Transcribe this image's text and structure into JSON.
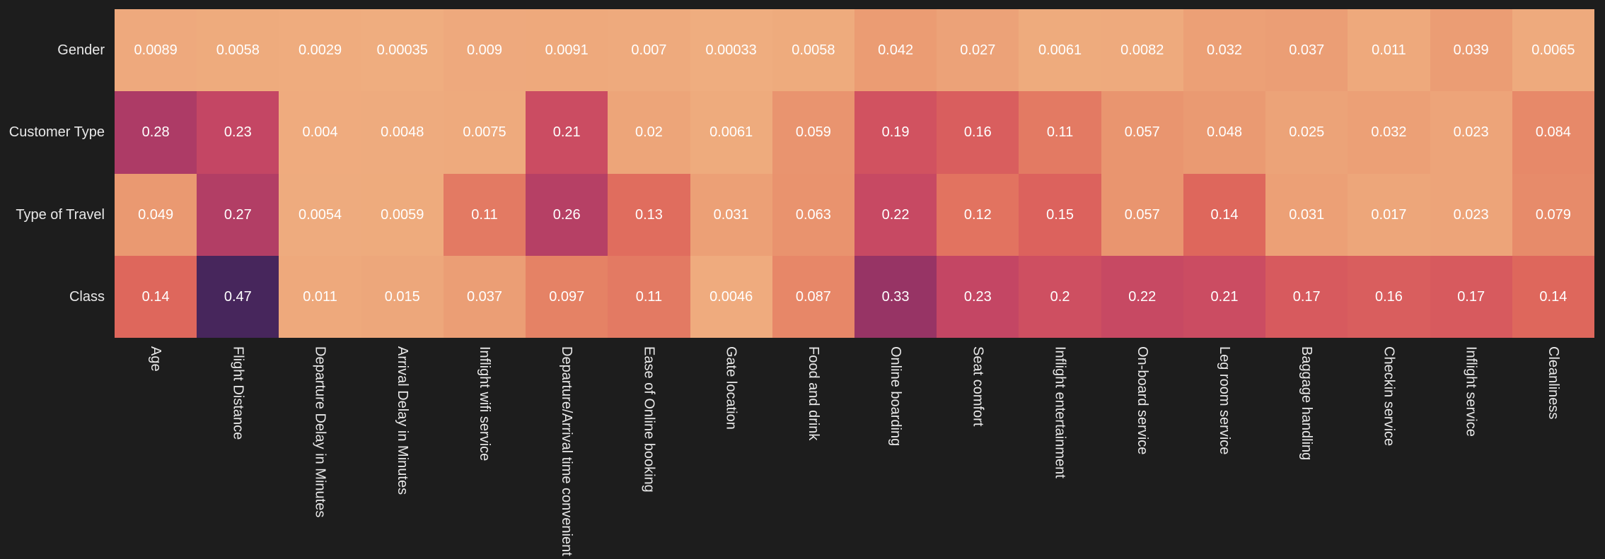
{
  "figure": {
    "background": "#1D1D1D",
    "label_color": "#E8E8E8",
    "annotation_color": "#FFFFFF",
    "colormap_stops": [
      [
        0.0,
        "#EFAD7F"
      ],
      [
        0.1,
        "#EA9A72"
      ],
      [
        0.2,
        "#E68466"
      ],
      [
        0.3,
        "#DE665C"
      ],
      [
        0.4,
        "#D25360"
      ],
      [
        0.5,
        "#C24564"
      ],
      [
        0.6,
        "#AC3B66"
      ],
      [
        0.7,
        "#983465"
      ],
      [
        0.85,
        "#6E2C63"
      ],
      [
        1.0,
        "#47265C"
      ]
    ]
  },
  "chart_data": {
    "type": "heatmap",
    "rows": [
      "Gender",
      "Customer Type",
      "Type of Travel",
      "Class"
    ],
    "columns": [
      "Age",
      "Flight Distance",
      "Departure Delay in Minutes",
      "Arrival Delay in Minutes",
      "Inflight wifi service",
      "Departure/Arrival time convenient",
      "Ease of Online booking",
      "Gate location",
      "Food and drink",
      "Online boarding",
      "Seat comfort",
      "Inflight entertainment",
      "On-board service",
      "Leg room service",
      "Baggage handling",
      "Checkin service",
      "Inflight service",
      "Cleanliness"
    ],
    "values": [
      [
        0.0089,
        0.0058,
        0.0029,
        0.00035,
        0.009,
        0.0091,
        0.007,
        0.00033,
        0.0058,
        0.042,
        0.027,
        0.0061,
        0.0082,
        0.032,
        0.037,
        0.011,
        0.039,
        0.0065
      ],
      [
        0.28,
        0.23,
        0.004,
        0.0048,
        0.0075,
        0.21,
        0.02,
        0.0061,
        0.059,
        0.19,
        0.16,
        0.11,
        0.057,
        0.048,
        0.025,
        0.032,
        0.023,
        0.084
      ],
      [
        0.049,
        0.27,
        0.0054,
        0.0059,
        0.11,
        0.26,
        0.13,
        0.031,
        0.063,
        0.22,
        0.12,
        0.15,
        0.057,
        0.14,
        0.031,
        0.017,
        0.023,
        0.079
      ],
      [
        0.14,
        0.47,
        0.011,
        0.015,
        0.037,
        0.097,
        0.11,
        0.0046,
        0.087,
        0.33,
        0.23,
        0.2,
        0.22,
        0.21,
        0.17,
        0.16,
        0.17,
        0.14
      ]
    ],
    "values_display": [
      [
        "0.0089",
        "0.0058",
        "0.0029",
        "0.00035",
        "0.009",
        "0.0091",
        "0.007",
        "0.00033",
        "0.0058",
        "0.042",
        "0.027",
        "0.0061",
        "0.0082",
        "0.032",
        "0.037",
        "0.011",
        "0.039",
        "0.0065"
      ],
      [
        "0.28",
        "0.23",
        "0.004",
        "0.0048",
        "0.0075",
        "0.21",
        "0.02",
        "0.0061",
        "0.059",
        "0.19",
        "0.16",
        "0.11",
        "0.057",
        "0.048",
        "0.025",
        "0.032",
        "0.023",
        "0.084"
      ],
      [
        "0.049",
        "0.27",
        "0.0054",
        "0.0059",
        "0.11",
        "0.26",
        "0.13",
        "0.031",
        "0.063",
        "0.22",
        "0.12",
        "0.15",
        "0.057",
        "0.14",
        "0.031",
        "0.017",
        "0.023",
        "0.079"
      ],
      [
        "0.14",
        "0.47",
        "0.011",
        "0.015",
        "0.037",
        "0.097",
        "0.11",
        "0.0046",
        "0.087",
        "0.33",
        "0.23",
        "0.2",
        "0.22",
        "0.21",
        "0.17",
        "0.16",
        "0.17",
        "0.14"
      ]
    ],
    "vmin": 0,
    "vmax": 0.47,
    "grid": false,
    "legend": "none",
    "annotations": true
  }
}
